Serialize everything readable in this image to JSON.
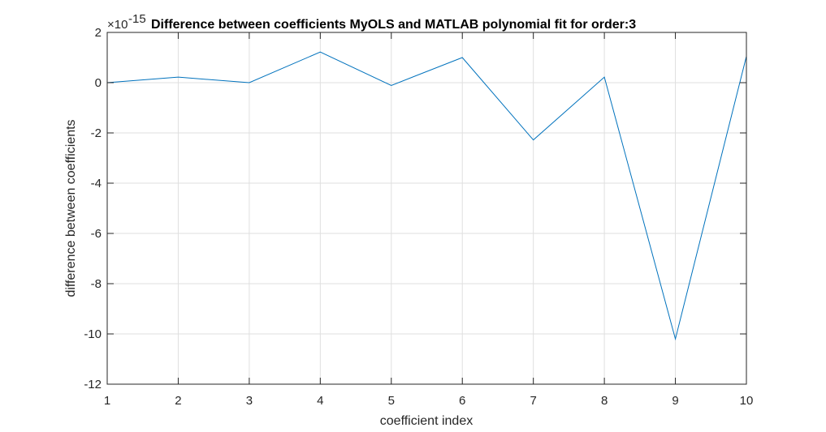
{
  "chart_data": {
    "type": "line",
    "title": "Difference between coefficients MyOLS and MATLAB polynomial fit for order:3",
    "xlabel": "coefficient index",
    "ylabel": "difference between coefficients",
    "y_exponent_base": "×10",
    "y_exponent_power": "-15",
    "xlim": [
      1,
      10
    ],
    "ylim": [
      -12,
      2
    ],
    "xticks": [
      "1",
      "2",
      "3",
      "4",
      "5",
      "6",
      "7",
      "8",
      "9",
      "10"
    ],
    "yticks": [
      "2",
      "0",
      "-2",
      "-4",
      "-6",
      "-8",
      "-10",
      "-12"
    ],
    "grid": true,
    "line_color": "#0072BD",
    "x": [
      1,
      2,
      3,
      4,
      5,
      6,
      7,
      8,
      9,
      10
    ],
    "series": [
      {
        "values": [
          0,
          0.22,
          0,
          1.22,
          -0.11,
          1.0,
          -2.28,
          0.22,
          -10.2,
          1.05
        ]
      }
    ]
  }
}
